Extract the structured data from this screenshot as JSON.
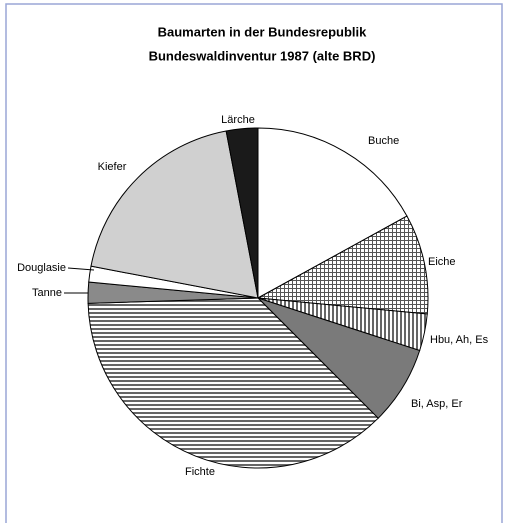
{
  "chart_data": {
    "type": "pie",
    "title": "Baumarten in der Bundesrepublik",
    "subtitle": "Bundeswaldinventur 1987 (alte BRD)",
    "categories": [
      "Buche",
      "Eiche",
      "Hbu, Ah, Es",
      "Bi, Asp, Er",
      "Fichte",
      "Tanne",
      "Douglasie",
      "Kiefer",
      "Lärche"
    ],
    "values": [
      17,
      9.5,
      3.5,
      7.5,
      37,
      2,
      1.5,
      19,
      3
    ],
    "fills": [
      "#ffffff",
      "crosshatch",
      "vstripes",
      "#7a7a7a",
      "hstripes",
      "#8a8a8a",
      "#ffffff",
      "#d0d0d0",
      "#1a1a1a"
    ]
  }
}
